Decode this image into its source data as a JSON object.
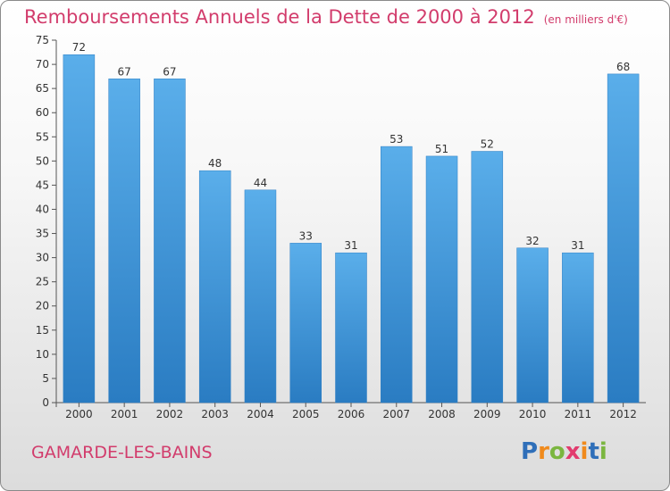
{
  "title": "Remboursements Annuels de la Dette de 2000 à 2012",
  "unit_note": "(en milliers d'€)",
  "commune": "GAMARDE-LES-BAINS",
  "logo": {
    "text": "Proxiti",
    "letter_colors": [
      "#2f6fb9",
      "#f08a1c",
      "#7bb640",
      "#e23b6e",
      "#f08a1c",
      "#2f6fb9",
      "#7bb640"
    ]
  },
  "colors": {
    "title": "#d23c6c",
    "bar_light": "#5aaeea",
    "bar_dark": "#2a7cc2"
  },
  "chart_data": {
    "type": "bar",
    "categories": [
      "2000",
      "2001",
      "2002",
      "2003",
      "2004",
      "2005",
      "2006",
      "2007",
      "2008",
      "2009",
      "2010",
      "2011",
      "2012"
    ],
    "values": [
      72,
      67,
      67,
      48,
      44,
      33,
      31,
      53,
      51,
      52,
      32,
      31,
      68
    ],
    "ylim": [
      0,
      75
    ],
    "yticks": [
      0,
      5,
      10,
      15,
      20,
      25,
      30,
      35,
      40,
      45,
      50,
      55,
      60,
      65,
      70,
      75
    ],
    "grid": false,
    "data_labels": true
  }
}
